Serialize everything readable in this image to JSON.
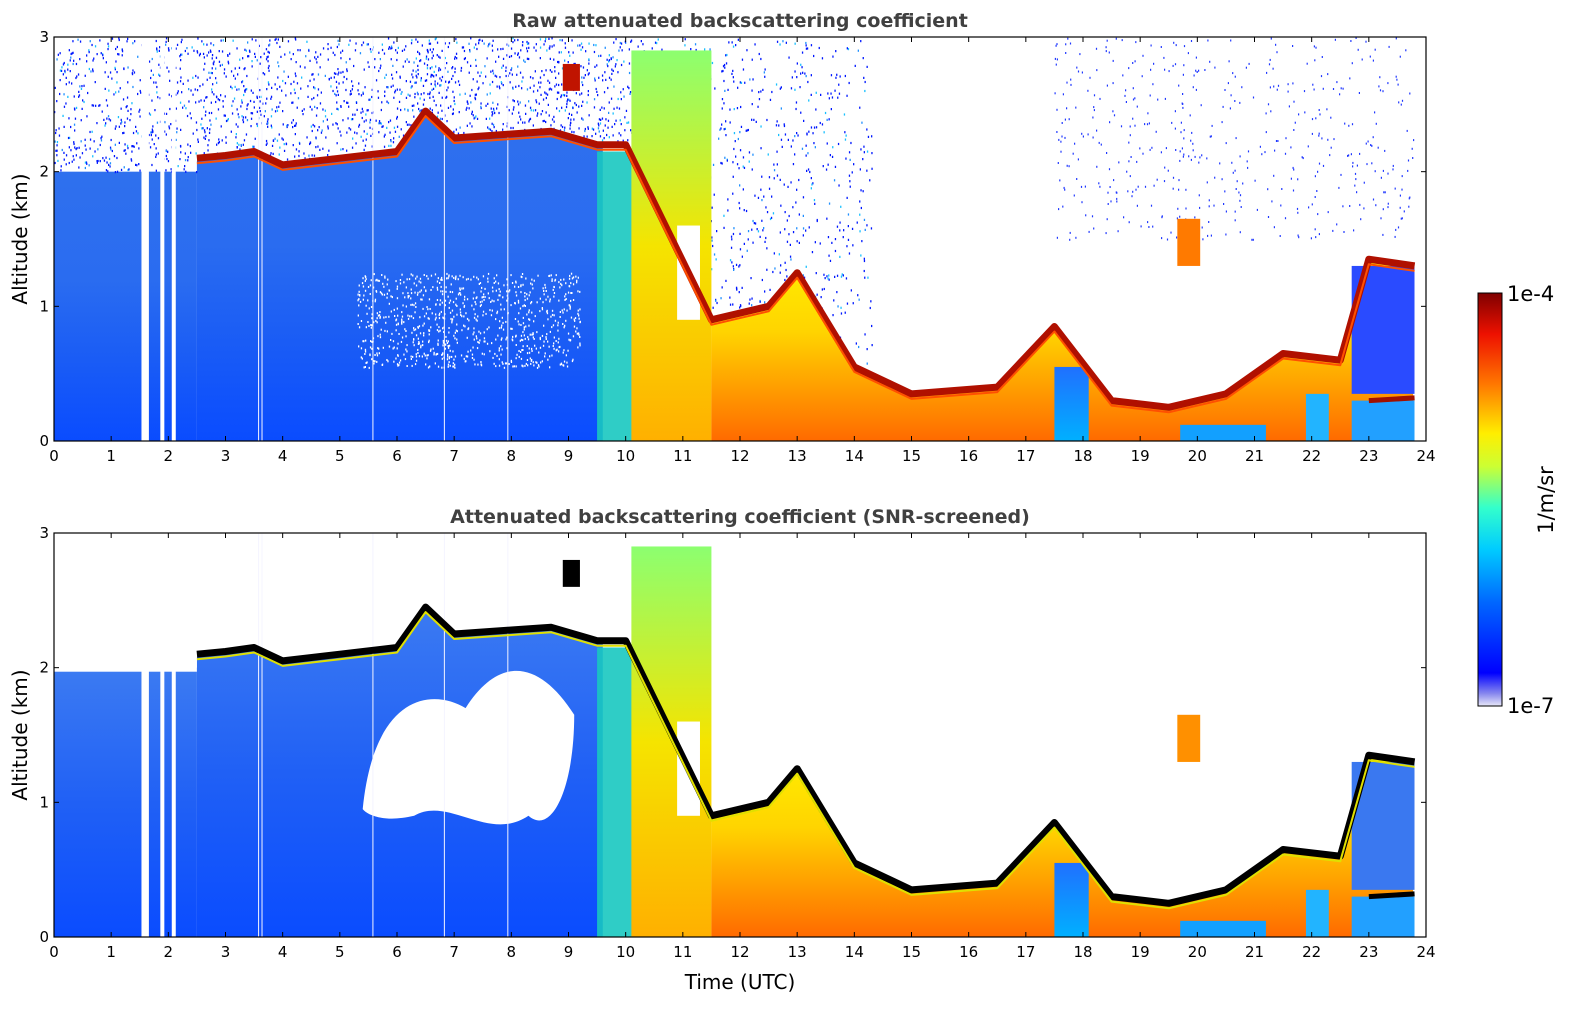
{
  "chart_data": [
    {
      "type": "heatmap",
      "title": "Raw attenuated backscattering coefficient",
      "xlabel": "",
      "ylabel": "Altitude (km)",
      "xlim": [
        0,
        24
      ],
      "ylim": [
        0,
        3
      ],
      "x_ticks": [
        "0",
        "1",
        "2",
        "3",
        "4",
        "5",
        "6",
        "7",
        "8",
        "9",
        "10",
        "11",
        "12",
        "13",
        "14",
        "15",
        "16",
        "17",
        "18",
        "19",
        "20",
        "21",
        "22",
        "23",
        "24"
      ],
      "y_ticks": [
        "0",
        "1",
        "2",
        "3"
      ],
      "cloud_top_km": [
        [
          2.5,
          2.1
        ],
        [
          3.0,
          2.12
        ],
        [
          3.5,
          2.15
        ],
        [
          4.0,
          2.05
        ],
        [
          5.0,
          2.1
        ],
        [
          6.0,
          2.15
        ],
        [
          6.5,
          2.45
        ],
        [
          7.0,
          2.25
        ],
        [
          8.0,
          2.28
        ],
        [
          8.7,
          2.3
        ],
        [
          9.5,
          2.2
        ],
        [
          10.0,
          2.2
        ],
        [
          11.5,
          0.9
        ],
        [
          12.5,
          1.0
        ],
        [
          13.0,
          1.25
        ],
        [
          14.0,
          0.55
        ],
        [
          15.0,
          0.35
        ],
        [
          16.5,
          0.4
        ],
        [
          17.5,
          0.85
        ],
        [
          18.5,
          0.3
        ],
        [
          19.5,
          0.25
        ],
        [
          20.5,
          0.35
        ],
        [
          21.5,
          0.65
        ],
        [
          22.5,
          0.6
        ],
        [
          23.0,
          1.35
        ],
        [
          23.8,
          1.3
        ]
      ]
    },
    {
      "type": "heatmap",
      "title": "Attenuated backscattering coefficient (SNR-screened)",
      "xlabel": "Time (UTC)",
      "ylabel": "Altitude (km)",
      "xlim": [
        0,
        24
      ],
      "ylim": [
        0,
        3
      ],
      "x_ticks": [
        "0",
        "1",
        "2",
        "3",
        "4",
        "5",
        "6",
        "7",
        "8",
        "9",
        "10",
        "11",
        "12",
        "13",
        "14",
        "15",
        "16",
        "17",
        "18",
        "19",
        "20",
        "21",
        "22",
        "23",
        "24"
      ],
      "y_ticks": [
        "0",
        "1",
        "2",
        "3"
      ]
    }
  ],
  "colorbar": {
    "label": "1/m/sr",
    "max_label": "1e-4",
    "min_label": "1e-7",
    "scale": "log",
    "colormap": "jet"
  }
}
